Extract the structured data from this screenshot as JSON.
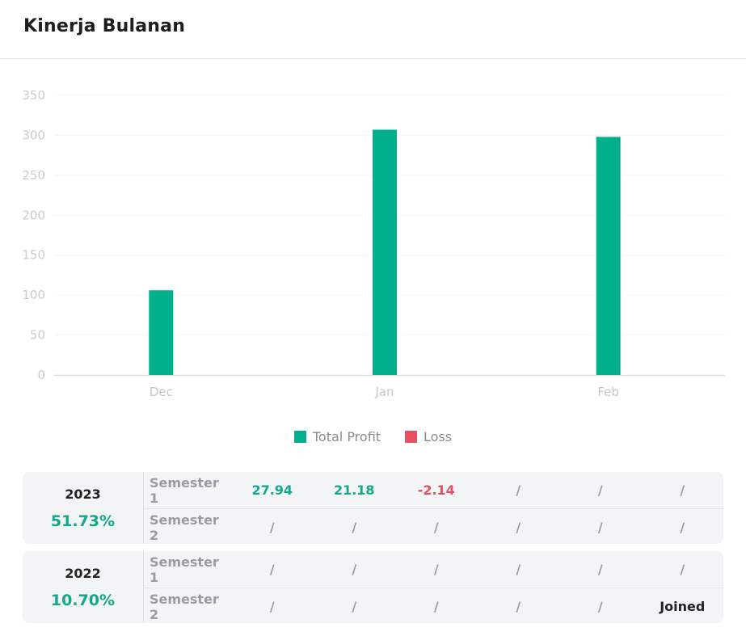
{
  "header": {
    "title": "Kinerja Bulanan"
  },
  "colors": {
    "profit": "#00b08c",
    "loss": "#e5515f",
    "positive_text": "#14a88a",
    "negative_text": "#e0505d"
  },
  "chart_data": {
    "type": "bar",
    "title": "",
    "xlabel": "",
    "ylabel": "",
    "categories": [
      "Dec",
      "Jan",
      "Feb"
    ],
    "series": [
      {
        "name": "Total Profit",
        "values": [
          106,
          307,
          298
        ]
      },
      {
        "name": "Loss",
        "values": [
          0,
          0,
          0
        ]
      }
    ],
    "ylim": [
      0,
      350
    ],
    "yticks": [
      "0",
      "50",
      "100",
      "150",
      "200",
      "250",
      "300",
      "350"
    ],
    "grid": true,
    "legend": "bottom-center"
  },
  "legend": [
    {
      "label": "Total Profit",
      "color": "#00b08c"
    },
    {
      "label": "Loss",
      "color": "#e5515f"
    }
  ],
  "years": [
    {
      "year": "2023",
      "percent": "51.73%",
      "semesters": [
        {
          "label": "Semester 1",
          "cells": [
            "27.94",
            "21.18",
            "-2.14",
            "/",
            "/",
            "/"
          ]
        },
        {
          "label": "Semester 2",
          "cells": [
            "/",
            "/",
            "/",
            "/",
            "/",
            "/"
          ]
        }
      ]
    },
    {
      "year": "2022",
      "percent": "10.70%",
      "semesters": [
        {
          "label": "Semester 1",
          "cells": [
            "/",
            "/",
            "/",
            "/",
            "/",
            "/"
          ]
        },
        {
          "label": "Semester 2",
          "cells": [
            "/",
            "/",
            "/",
            "/",
            "/",
            "Joined"
          ]
        }
      ]
    }
  ]
}
